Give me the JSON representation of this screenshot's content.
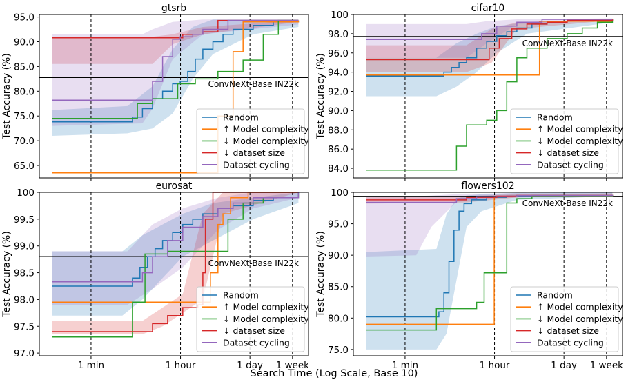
{
  "figure": {
    "xlabel": "Search Time (Log Scale, Base 10)",
    "ylabel": "Test Accuracy (%)",
    "x_ticks": [
      {
        "label": "1 min",
        "log10_seconds": 1.778
      },
      {
        "label": "1 hour",
        "log10_seconds": 3.556
      },
      {
        "label": "1 day",
        "log10_seconds": 4.936
      },
      {
        "label": "1 week",
        "log10_seconds": 5.782
      }
    ],
    "xlim": [
      0.75,
      6.1
    ],
    "legend": [
      "Random",
      "↑ Model complexity",
      "↓ Model complexity",
      "↓ dataset size",
      "Dataset cycling"
    ],
    "colors": {
      "Random": "#1f77b4",
      "↑ Model complexity": "#ff7f0e",
      "↓ Model complexity": "#2ca02c",
      "↓ dataset size": "#d62728",
      "Dataset cycling": "#9467bd",
      "baseline": "#000000"
    },
    "baseline_label": "ConvNeXt-Base IN22k"
  },
  "chart_data": [
    {
      "type": "line",
      "title": "gtsrb",
      "ylim": [
        62.5,
        95.5
      ],
      "yticks": [
        65.0,
        70.0,
        75.0,
        80.0,
        85.0,
        90.0,
        95.0
      ],
      "ytick_labels": [
        "65.0",
        "70.0",
        "75.0",
        "80.0",
        "85.0",
        "90.0",
        "95.0"
      ],
      "baseline": 82.8,
      "series": [
        {
          "name": "Random",
          "band": [
            [
              1.0,
              71.0,
              76.2
            ],
            [
              2.5,
              71.5,
              77.0
            ],
            [
              3.0,
              72.5,
              81.0
            ],
            [
              3.4,
              75.5,
              88.5
            ],
            [
              3.8,
              82.5,
              93.0
            ],
            [
              4.2,
              87.5,
              94.5
            ],
            [
              5.0,
              91.5,
              94.5
            ],
            [
              5.9,
              93.0,
              94.5
            ]
          ],
          "x": [
            1.0,
            2.45,
            2.6,
            2.8,
            3.0,
            3.2,
            3.4,
            3.55,
            3.7,
            3.85,
            4.0,
            4.2,
            4.4,
            4.6,
            5.0,
            5.4,
            5.9
          ],
          "y": [
            73.8,
            73.8,
            74.8,
            76.5,
            78.5,
            80.0,
            81.5,
            82.0,
            84.0,
            86.5,
            88.5,
            90.0,
            91.5,
            92.5,
            93.3,
            94.0,
            94.3
          ]
        },
        {
          "name": "↑ Model complexity",
          "x": [
            1.0,
            4.25,
            4.3,
            4.55,
            4.6,
            4.8,
            5.9
          ],
          "y": [
            63.5,
            63.5,
            75.0,
            75.0,
            88.0,
            94.0,
            94.3
          ]
        },
        {
          "name": "↓ Model complexity",
          "x": [
            1.0,
            2.5,
            2.7,
            3.0,
            3.5,
            3.85,
            4.3,
            4.8,
            5.2,
            5.5,
            5.9
          ],
          "y": [
            74.5,
            74.5,
            77.5,
            78.5,
            81.5,
            82.5,
            84.0,
            86.3,
            91.5,
            94.3,
            94.3
          ]
        },
        {
          "name": "↓ dataset size",
          "band": [
            [
              1.0,
              85.5,
              91.0
            ],
            [
              3.0,
              85.5,
              91.0
            ],
            [
              3.4,
              89.5,
              91.5
            ],
            [
              4.0,
              91.5,
              93.0
            ],
            [
              5.9,
              94.0,
              94.3
            ]
          ],
          "x": [
            1.0,
            3.4,
            3.6,
            4.0,
            4.3,
            5.9
          ],
          "y": [
            90.8,
            90.8,
            91.5,
            92.0,
            94.3,
            94.3
          ]
        },
        {
          "name": "Dataset cycling",
          "band": [
            [
              1.0,
              73.0,
              91.5
            ],
            [
              2.8,
              73.5,
              91.5
            ],
            [
              3.0,
              76.5,
              92.5
            ],
            [
              3.4,
              86.5,
              94.0
            ],
            [
              4.0,
              91.5,
              94.5
            ],
            [
              5.9,
              93.5,
              94.5
            ]
          ],
          "x": [
            1.0,
            2.8,
            3.0,
            3.2,
            3.4,
            3.55,
            3.8,
            4.0,
            4.5,
            5.9
          ],
          "y": [
            78.2,
            78.2,
            82.0,
            87.0,
            90.5,
            91.0,
            91.5,
            92.5,
            94.3,
            94.3
          ]
        }
      ]
    },
    {
      "type": "line",
      "title": "cifar10",
      "ylim": [
        83.0,
        100.0
      ],
      "yticks": [
        84,
        86,
        88,
        90,
        92,
        94,
        96,
        98,
        100
      ],
      "ytick_labels": [
        "84.0",
        "86.0",
        "88.0",
        "90.0",
        "92.0",
        "94.0",
        "96.0",
        "98.0",
        "100"
      ],
      "baseline": 97.7,
      "series": [
        {
          "name": "Random",
          "band": [
            [
              1.0,
              91.5,
              95.5
            ],
            [
              2.4,
              91.5,
              95.5
            ],
            [
              2.8,
              92.5,
              97.0
            ],
            [
              3.2,
              94.0,
              98.0
            ],
            [
              3.6,
              96.0,
              98.8
            ],
            [
              4.2,
              98.0,
              99.2
            ],
            [
              5.9,
              99.2,
              99.5
            ]
          ],
          "x": [
            1.0,
            2.4,
            2.55,
            2.7,
            2.85,
            3.0,
            3.2,
            3.4,
            3.6,
            3.8,
            4.0,
            4.3,
            4.6,
            5.0,
            5.9
          ],
          "y": [
            93.6,
            93.6,
            94.0,
            94.5,
            95.0,
            95.5,
            96.5,
            97.2,
            97.8,
            98.2,
            98.6,
            99.0,
            99.2,
            99.4,
            99.5
          ]
        },
        {
          "name": "↑ Model complexity",
          "x": [
            1.0,
            4.4,
            4.45,
            5.9
          ],
          "y": [
            93.7,
            93.7,
            99.3,
            99.5
          ]
        },
        {
          "name": "↓ Model complexity",
          "x": [
            1.0,
            2.7,
            2.8,
            3.0,
            3.4,
            3.6,
            3.8,
            4.0,
            4.2,
            4.6,
            5.0,
            5.3,
            5.6,
            5.9
          ],
          "y": [
            83.8,
            83.8,
            86.3,
            88.5,
            89.0,
            90.0,
            93.0,
            95.5,
            96.5,
            97.5,
            98.0,
            98.6,
            99.2,
            99.5
          ]
        },
        {
          "name": "↓ dataset size",
          "band": [
            [
              1.0,
              94.0,
              96.8
            ],
            [
              3.0,
              94.0,
              96.8
            ],
            [
              3.5,
              95.0,
              98.5
            ],
            [
              4.0,
              98.5,
              99.2
            ],
            [
              5.9,
              99.4,
              99.5
            ]
          ],
          "x": [
            1.0,
            3.2,
            3.45,
            3.65,
            3.9,
            4.2,
            4.6,
            5.0,
            5.9
          ],
          "y": [
            95.3,
            95.3,
            96.5,
            97.5,
            98.5,
            99.0,
            99.2,
            99.4,
            99.5
          ]
        },
        {
          "name": "Dataset cycling",
          "band": [
            [
              1.0,
              95.5,
              99.0
            ],
            [
              3.0,
              95.5,
              99.0
            ],
            [
              3.4,
              97.0,
              99.3
            ],
            [
              4.0,
              99.0,
              99.5
            ],
            [
              5.9,
              99.4,
              99.6
            ]
          ],
          "x": [
            1.0,
            3.1,
            3.3,
            3.6,
            4.0,
            4.5,
            5.9
          ],
          "y": [
            97.4,
            97.4,
            98.0,
            98.8,
            99.2,
            99.5,
            99.5
          ]
        }
      ]
    },
    {
      "type": "line",
      "title": "eurosat",
      "ylim": [
        96.95,
        100.0
      ],
      "yticks": [
        97.0,
        97.5,
        98.0,
        98.5,
        99.0,
        99.5,
        100.0
      ],
      "ytick_labels": [
        "97.0",
        "97.5",
        "98.0",
        "98.5",
        "99.0",
        "99.5",
        "100"
      ],
      "baseline": 98.8,
      "series": [
        {
          "name": "Random",
          "band": [
            [
              1.0,
              97.7,
              98.9
            ],
            [
              2.4,
              97.7,
              98.9
            ],
            [
              2.8,
              98.0,
              99.2
            ],
            [
              3.2,
              98.4,
              99.4
            ],
            [
              3.6,
              98.8,
              99.6
            ],
            [
              4.2,
              99.1,
              99.8
            ],
            [
              5.0,
              99.5,
              99.9
            ],
            [
              5.9,
              99.8,
              100.0
            ]
          ],
          "x": [
            1.0,
            2.45,
            2.6,
            2.75,
            2.9,
            3.05,
            3.2,
            3.4,
            3.6,
            3.8,
            4.0,
            4.3,
            4.6,
            5.0,
            5.4,
            5.9
          ],
          "y": [
            98.25,
            98.25,
            98.4,
            98.6,
            98.8,
            98.95,
            99.1,
            99.25,
            99.4,
            99.5,
            99.6,
            99.7,
            99.75,
            99.85,
            99.9,
            100.0
          ]
        },
        {
          "name": "↑ Model complexity",
          "x": [
            1.0,
            3.85,
            4.0,
            4.15,
            4.3,
            4.4,
            4.55,
            4.9,
            5.9
          ],
          "y": [
            97.95,
            97.95,
            97.95,
            98.5,
            99.4,
            99.6,
            99.9,
            100.0,
            100.0
          ]
        },
        {
          "name": "↓ Model complexity",
          "x": [
            1.0,
            2.5,
            2.6,
            2.85,
            3.3,
            3.8,
            4.3,
            4.5,
            4.8,
            5.2,
            5.9
          ],
          "y": [
            97.3,
            97.3,
            97.95,
            98.85,
            98.9,
            98.9,
            98.9,
            99.5,
            99.8,
            99.9,
            100.0
          ]
        },
        {
          "name": "↓ dataset size",
          "band": [
            [
              1.0,
              97.35,
              97.6
            ],
            [
              2.8,
              97.35,
              97.6
            ],
            [
              3.2,
              97.5,
              97.85
            ],
            [
              3.6,
              97.75,
              98.1
            ],
            [
              4.0,
              98.0,
              99.6
            ],
            [
              4.4,
              99.6,
              100.0
            ],
            [
              5.9,
              100.0,
              100.0
            ]
          ],
          "x": [
            1.0,
            2.9,
            3.0,
            3.3,
            3.6,
            3.9,
            4.0,
            4.05,
            4.2,
            5.9
          ],
          "y": [
            97.4,
            97.4,
            97.55,
            97.7,
            97.85,
            97.9,
            98.5,
            99.5,
            100.0,
            100.0
          ]
        },
        {
          "name": "Dataset cycling",
          "band": [
            [
              1.0,
              97.9,
              98.9
            ],
            [
              2.5,
              97.9,
              98.9
            ],
            [
              3.0,
              98.2,
              99.4
            ],
            [
              3.6,
              98.6,
              99.7
            ],
            [
              4.3,
              99.3,
              99.9
            ],
            [
              5.0,
              99.7,
              100.0
            ],
            [
              5.9,
              99.9,
              100.0
            ]
          ],
          "x": [
            1.0,
            2.6,
            2.8,
            3.0,
            3.3,
            3.6,
            4.0,
            4.3,
            4.6,
            5.0,
            5.9
          ],
          "y": [
            98.33,
            98.33,
            98.5,
            98.8,
            99.1,
            99.35,
            99.55,
            99.7,
            99.8,
            99.9,
            100.0
          ]
        }
      ]
    },
    {
      "type": "line",
      "title": "flowers102",
      "ylim": [
        74.0,
        100.0
      ],
      "yticks": [
        75.0,
        80.0,
        85.0,
        90.0,
        95.0,
        100.0
      ],
      "ytick_labels": [
        "75.0",
        "80.0",
        "85.0",
        "90.0",
        "95.0",
        "100"
      ],
      "baseline": 99.35,
      "series": [
        {
          "name": "Random",
          "band": [
            [
              1.0,
              75.0,
              90.5
            ],
            [
              2.4,
              75.0,
              91.0
            ],
            [
              2.6,
              77.5,
              96.5
            ],
            [
              2.8,
              86.0,
              99.0
            ],
            [
              3.0,
              94.5,
              99.5
            ],
            [
              3.3,
              97.0,
              99.7
            ],
            [
              4.0,
              98.8,
              99.9
            ],
            [
              5.9,
              99.4,
              100.0
            ]
          ],
          "x": [
            1.0,
            2.35,
            2.45,
            2.55,
            2.65,
            2.75,
            2.85,
            2.95,
            3.1,
            3.4,
            3.8,
            4.3,
            5.9
          ],
          "y": [
            80.2,
            80.2,
            81.0,
            84.0,
            89.0,
            94.0,
            97.0,
            98.2,
            98.8,
            99.2,
            99.4,
            99.5,
            99.6
          ]
        },
        {
          "name": "↑ Model complexity",
          "x": [
            1.0,
            3.5,
            3.55,
            4.0,
            5.9
          ],
          "y": [
            79.0,
            79.0,
            99.3,
            99.5,
            99.6
          ]
        },
        {
          "name": "↓ Model complexity",
          "x": [
            1.0,
            2.3,
            2.4,
            3.0,
            3.2,
            3.35,
            3.6,
            3.8,
            4.0,
            4.3,
            5.9
          ],
          "y": [
            78.1,
            78.1,
            81.5,
            81.5,
            82.5,
            87.2,
            87.2,
            98.3,
            99.0,
            99.4,
            99.6
          ]
        },
        {
          "name": "↓ dataset size",
          "band": [
            [
              1.0,
              98.2,
              99.2
            ],
            [
              3.0,
              98.4,
              99.4
            ],
            [
              4.0,
              99.2,
              99.7
            ],
            [
              5.9,
              99.5,
              99.8
            ]
          ],
          "x": [
            1.0,
            2.8,
            3.0,
            3.6,
            4.0,
            5.9
          ],
          "y": [
            98.8,
            98.8,
            99.2,
            99.4,
            99.5,
            99.6
          ]
        },
        {
          "name": "Dataset cycling",
          "band": [
            [
              1.0,
              89.8,
              99.3
            ],
            [
              2.0,
              90.0,
              99.4
            ],
            [
              2.3,
              94.5,
              99.5
            ],
            [
              2.8,
              98.5,
              99.7
            ],
            [
              4.0,
              99.4,
              99.9
            ],
            [
              5.9,
              99.5,
              99.9
            ]
          ],
          "x": [
            1.0,
            2.5,
            2.8,
            3.2,
            4.0,
            5.9
          ],
          "y": [
            98.4,
            98.4,
            99.0,
            99.3,
            99.5,
            99.6
          ]
        }
      ]
    }
  ]
}
